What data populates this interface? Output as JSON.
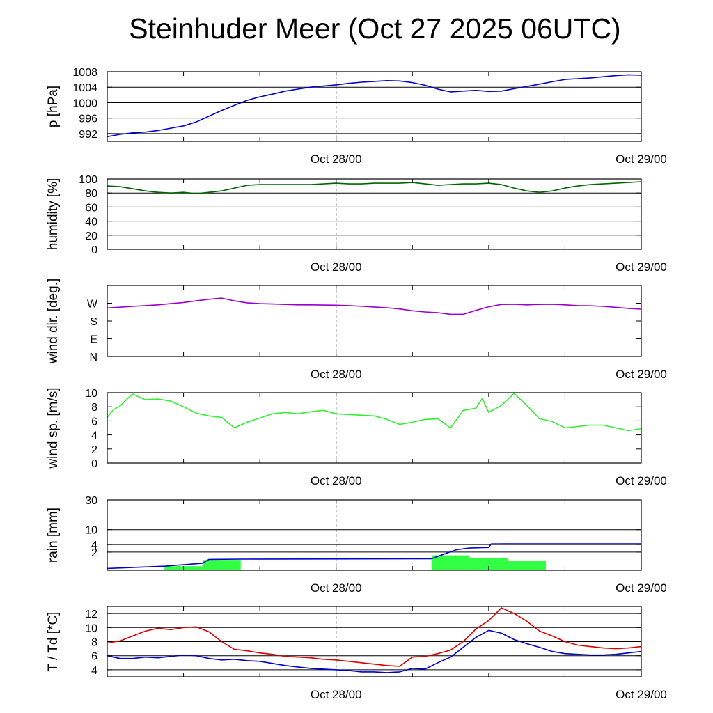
{
  "title": "Steinhuder Meer (Oct 27 2025 06UTC)",
  "chart_data": [
    {
      "id": "pressure",
      "type": "line",
      "ylabel": "p [hPa]",
      "yscale": "linear",
      "ylim": [
        990,
        1008
      ],
      "yticks": [
        {
          "v": 992,
          "label": "992"
        },
        {
          "v": 996,
          "label": "996"
        },
        {
          "v": 1000,
          "label": "1000"
        },
        {
          "v": 1004,
          "label": "1004"
        },
        {
          "v": 1008,
          "label": "1008"
        }
      ],
      "grid": [
        992,
        996,
        1000,
        1004,
        1008
      ],
      "xlim": [
        0,
        42
      ],
      "xticks": [
        {
          "v": 18,
          "label": "Oct 28/00"
        },
        {
          "v": 42,
          "label": "Oct 29/00"
        }
      ],
      "series": [
        {
          "name": "pressure",
          "color": "#0000cc",
          "x": [
            0,
            1,
            2,
            3,
            4,
            5,
            6,
            7,
            8,
            9,
            10,
            11,
            12,
            13,
            14,
            15,
            16,
            17,
            18,
            19,
            20,
            21,
            22,
            23,
            24,
            25,
            26,
            27,
            28,
            29,
            30,
            31,
            32,
            33,
            34,
            35,
            36,
            37,
            38,
            39,
            40,
            41,
            42
          ],
          "values": [
            991.2,
            991.8,
            992.2,
            992.4,
            992.8,
            993.4,
            994.0,
            995.0,
            996.5,
            998.0,
            999.3,
            1000.6,
            1001.5,
            1002.2,
            1003.0,
            1003.5,
            1004.0,
            1004.3,
            1004.6,
            1005.0,
            1005.3,
            1005.5,
            1005.7,
            1005.6,
            1005.2,
            1004.5,
            1003.5,
            1002.8,
            1003.0,
            1003.2,
            1002.9,
            1003.0,
            1003.6,
            1004.2,
            1004.8,
            1005.4,
            1006.0,
            1006.2,
            1006.4,
            1006.7,
            1007.0,
            1007.2,
            1007.1
          ]
        }
      ]
    },
    {
      "id": "humidity",
      "type": "line",
      "ylabel": "humidity [%]",
      "yscale": "linear",
      "ylim": [
        0,
        100
      ],
      "yticks": [
        {
          "v": 0,
          "label": "0"
        },
        {
          "v": 20,
          "label": "20"
        },
        {
          "v": 40,
          "label": "40"
        },
        {
          "v": 60,
          "label": "60"
        },
        {
          "v": 80,
          "label": "80"
        },
        {
          "v": 100,
          "label": "100"
        }
      ],
      "grid": [
        20,
        40,
        60,
        80
      ],
      "xlim": [
        0,
        42
      ],
      "xticks": [
        {
          "v": 18,
          "label": "Oct 28/00"
        },
        {
          "v": 42,
          "label": "Oct 29/00"
        }
      ],
      "series": [
        {
          "name": "humidity",
          "color": "#006400",
          "x": [
            0,
            1,
            2,
            3,
            4,
            5,
            6,
            7,
            8,
            9,
            10,
            11,
            12,
            13,
            14,
            15,
            16,
            17,
            18,
            19,
            20,
            21,
            22,
            23,
            24,
            25,
            26,
            27,
            28,
            29,
            30,
            31,
            32,
            33,
            34,
            35,
            36,
            37,
            38,
            39,
            40,
            41,
            42
          ],
          "values": [
            90,
            89,
            86,
            83,
            81,
            80,
            81,
            79,
            81,
            83,
            87,
            91,
            92,
            92,
            92,
            92,
            92,
            93,
            94,
            93,
            93,
            94,
            94,
            94,
            95,
            93,
            91,
            92,
            93,
            93,
            94,
            92,
            87,
            83,
            81,
            83,
            87,
            90,
            92,
            93,
            94,
            95,
            96
          ]
        }
      ]
    },
    {
      "id": "winddir",
      "type": "line",
      "ylabel": "wind dir. [deg.]",
      "yscale": "linear",
      "ylim": [
        0,
        360
      ],
      "yticks": [
        {
          "v": 0,
          "label": "N"
        },
        {
          "v": 90,
          "label": "E"
        },
        {
          "v": 180,
          "label": "S"
        },
        {
          "v": 270,
          "label": "W"
        }
      ],
      "grid": [],
      "xlim": [
        0,
        42
      ],
      "xticks": [
        {
          "v": 18,
          "label": "Oct 28/00"
        },
        {
          "v": 42,
          "label": "Oct 29/00"
        }
      ],
      "series": [
        {
          "name": "wind direction",
          "color": "#9900cc",
          "x": [
            0,
            1,
            2,
            3,
            4,
            5,
            6,
            7,
            8,
            9,
            10,
            11,
            12,
            13,
            14,
            15,
            16,
            17,
            18,
            19,
            20,
            21,
            22,
            23,
            24,
            25,
            26,
            27,
            28,
            29,
            30,
            31,
            32,
            33,
            34,
            35,
            36,
            37,
            38,
            39,
            40,
            41,
            42
          ],
          "values": [
            246,
            250,
            254,
            258,
            262,
            268,
            274,
            282,
            290,
            296,
            282,
            272,
            268,
            266,
            264,
            262,
            262,
            261,
            260,
            258,
            255,
            251,
            247,
            241,
            232,
            226,
            222,
            214,
            214,
            234,
            252,
            264,
            265,
            262,
            264,
            265,
            262,
            258,
            257,
            254,
            249,
            244,
            240
          ]
        }
      ]
    },
    {
      "id": "windspeed",
      "type": "line",
      "ylabel": "wind sp. [m/s]",
      "yscale": "linear",
      "ylim": [
        0,
        10
      ],
      "yticks": [
        {
          "v": 0,
          "label": "0"
        },
        {
          "v": 2,
          "label": "2"
        },
        {
          "v": 4,
          "label": "4"
        },
        {
          "v": 6,
          "label": "6"
        },
        {
          "v": 8,
          "label": "8"
        },
        {
          "v": 10,
          "label": "10"
        }
      ],
      "grid": [],
      "xlim": [
        0,
        42
      ],
      "xticks": [
        {
          "v": 18,
          "label": "Oct 28/00"
        },
        {
          "v": 42,
          "label": "Oct 29/00"
        }
      ],
      "series": [
        {
          "name": "wind speed",
          "color": "#33ee33",
          "x": [
            0,
            0.5,
            1,
            1.5,
            2,
            3,
            4,
            5,
            6,
            7,
            8,
            9,
            10,
            11,
            12,
            13,
            14,
            15,
            16,
            17,
            18,
            19,
            20,
            21,
            22,
            23,
            24,
            25,
            26,
            27,
            28,
            29,
            29.5,
            30,
            31,
            32,
            33,
            34,
            35,
            36,
            37,
            38,
            39,
            40,
            41,
            42
          ],
          "values": [
            6.5,
            7.6,
            8.1,
            9.0,
            9.8,
            9.0,
            9.1,
            8.8,
            8.0,
            7.1,
            6.7,
            6.5,
            5.0,
            5.8,
            6.4,
            7.0,
            7.2,
            7.0,
            7.3,
            7.5,
            7.0,
            6.9,
            6.8,
            6.7,
            6.2,
            5.5,
            5.8,
            6.2,
            6.3,
            5.0,
            7.5,
            7.8,
            9.2,
            7.2,
            8.2,
            9.9,
            8.2,
            6.3,
            5.9,
            5.0,
            5.2,
            5.4,
            5.4,
            5.0,
            4.6,
            4.9
          ]
        }
      ]
    },
    {
      "id": "rain",
      "type": "bar+line",
      "ylabel": "rain [mm]",
      "yscale": "sqrt",
      "ylim": [
        0,
        30
      ],
      "yticks": [
        {
          "v": 2,
          "label": "2"
        },
        {
          "v": 4,
          "label": "4"
        },
        {
          "v": 10,
          "label": "10"
        },
        {
          "v": 30,
          "label": "30"
        }
      ],
      "grid": [
        2,
        4,
        10,
        30
      ],
      "xlim": [
        0,
        42
      ],
      "xticks": [
        {
          "v": 18,
          "label": "Oct 28/00"
        },
        {
          "v": 42,
          "label": "Oct 29/00"
        }
      ],
      "bars": {
        "name": "hourly rain",
        "color": "#33ff44",
        "intervals": [
          {
            "from": 4.5,
            "to": 7.5,
            "value": 0.1
          },
          {
            "from": 7.5,
            "to": 10.5,
            "value": 0.65
          },
          {
            "from": 25.5,
            "to": 28.5,
            "value": 1.35
          },
          {
            "from": 28.5,
            "to": 31.5,
            "value": 0.85
          },
          {
            "from": 31.5,
            "to": 34.5,
            "value": 0.55
          }
        ]
      },
      "series": [
        {
          "name": "accumulated rain",
          "color": "#0000cc",
          "x": [
            0,
            4.5,
            7.5,
            8,
            10.5,
            25.5,
            26.5,
            27.5,
            28.5,
            29.5,
            30,
            30.2,
            31.5,
            34.5,
            42
          ],
          "values": [
            0.02,
            0.1,
            0.3,
            0.72,
            0.75,
            0.8,
            1.6,
            2.6,
            3.0,
            3.1,
            3.15,
            4.2,
            4.25,
            4.25,
            4.25
          ]
        }
      ]
    },
    {
      "id": "temperature",
      "type": "line",
      "ylabel": "T / Td [*C]",
      "yscale": "linear",
      "ylim": [
        3,
        13
      ],
      "yticks": [
        {
          "v": 4,
          "label": "4"
        },
        {
          "v": 6,
          "label": "6"
        },
        {
          "v": 8,
          "label": "8"
        },
        {
          "v": 10,
          "label": "10"
        },
        {
          "v": 12,
          "label": "12"
        }
      ],
      "grid": [
        4,
        6,
        8,
        10,
        12
      ],
      "xlim": [
        0,
        42
      ],
      "xticks": [
        {
          "v": 18,
          "label": "Oct 28/00"
        },
        {
          "v": 42,
          "label": "Oct 29/00"
        }
      ],
      "series": [
        {
          "name": "T",
          "color": "#dd0000",
          "x": [
            0,
            1,
            2,
            3,
            4,
            5,
            6,
            7,
            8,
            9,
            10,
            11,
            12,
            13,
            14,
            15,
            16,
            17,
            18,
            19,
            20,
            21,
            22,
            23,
            24,
            25,
            26,
            27,
            28,
            29,
            30,
            31,
            32,
            33,
            34,
            35,
            36,
            37,
            38,
            39,
            40,
            41,
            42
          ],
          "values": [
            7.8,
            8.1,
            8.8,
            9.5,
            9.9,
            9.7,
            10.0,
            10.1,
            9.4,
            8.0,
            6.9,
            6.7,
            6.4,
            6.2,
            5.9,
            5.8,
            5.7,
            5.5,
            5.4,
            5.2,
            5.0,
            4.8,
            4.6,
            4.5,
            5.8,
            5.9,
            6.3,
            6.8,
            8.0,
            9.8,
            11.0,
            12.8,
            12.0,
            10.9,
            9.5,
            8.8,
            8.0,
            7.5,
            7.3,
            7.1,
            7.0,
            7.1,
            7.3
          ]
        },
        {
          "name": "Td",
          "color": "#0000cc",
          "x": [
            0,
            1,
            2,
            3,
            4,
            5,
            6,
            7,
            8,
            9,
            10,
            11,
            12,
            13,
            14,
            15,
            16,
            17,
            18,
            19,
            20,
            21,
            22,
            23,
            24,
            25,
            26,
            27,
            28,
            29,
            30,
            31,
            32,
            33,
            34,
            35,
            36,
            37,
            38,
            39,
            40,
            41,
            42
          ],
          "values": [
            6.0,
            5.6,
            5.6,
            5.8,
            5.7,
            5.9,
            6.1,
            6.0,
            5.6,
            5.4,
            5.5,
            5.3,
            5.2,
            4.9,
            4.6,
            4.4,
            4.2,
            4.1,
            4.0,
            3.9,
            3.7,
            3.7,
            3.6,
            3.7,
            4.2,
            4.1,
            5.0,
            5.8,
            7.2,
            8.6,
            9.6,
            9.2,
            8.3,
            7.7,
            7.2,
            6.6,
            6.3,
            6.2,
            6.1,
            6.1,
            6.2,
            6.4,
            6.6
          ]
        }
      ]
    }
  ]
}
